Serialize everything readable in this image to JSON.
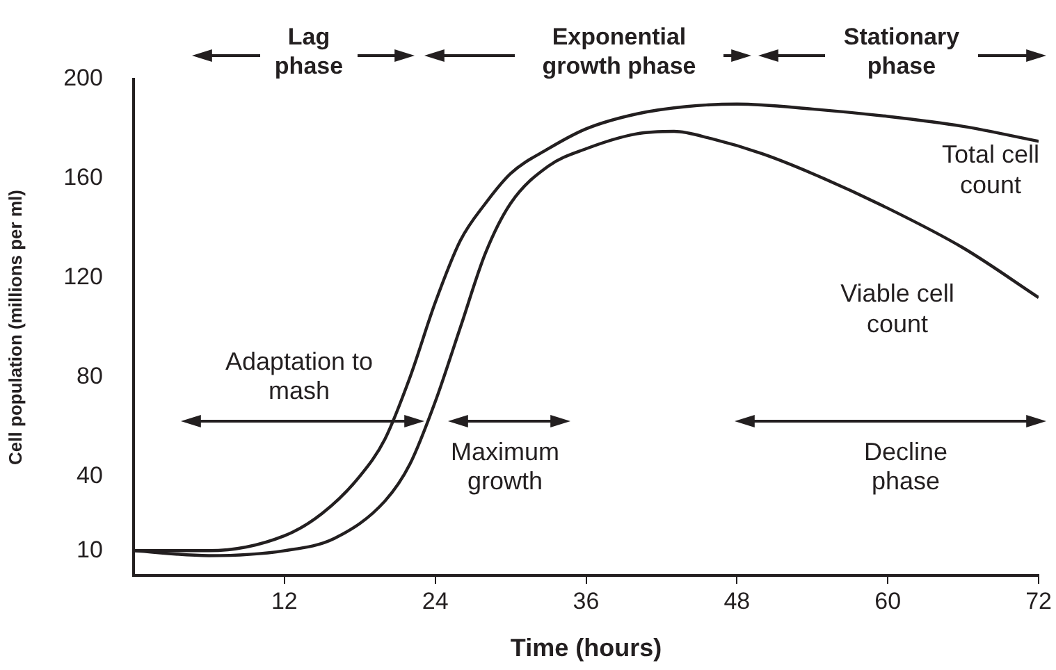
{
  "chart_data": {
    "type": "line",
    "xlabel": "Time (hours)",
    "ylabel": "Cell population (millions per ml)",
    "xlim": [
      0,
      72
    ],
    "xticks": [
      12,
      24,
      36,
      48,
      60,
      72
    ],
    "ylim": [
      0,
      200
    ],
    "yticks": [
      10,
      40,
      80,
      120,
      160,
      200
    ],
    "grid": false,
    "legend": false,
    "marker": "none",
    "line_style": "solid",
    "series": [
      {
        "name": "Total cell count",
        "color": "#231f20",
        "x": [
          0,
          6,
          12,
          15,
          18,
          20,
          22,
          24,
          26,
          28,
          30,
          33,
          36,
          40,
          44,
          48,
          54,
          60,
          66,
          72
        ],
        "values": [
          10,
          10,
          16,
          25,
          40,
          55,
          80,
          110,
          135,
          150,
          162,
          172,
          180,
          186,
          189,
          190,
          188,
          185,
          181,
          175
        ]
      },
      {
        "name": "Viable cell count",
        "color": "#231f20",
        "x": [
          0,
          6,
          12,
          16,
          20,
          22,
          24,
          26,
          28,
          30,
          33,
          36,
          40,
          43,
          46,
          50,
          54,
          60,
          66,
          72
        ],
        "values": [
          10,
          8,
          10,
          15,
          30,
          45,
          70,
          100,
          130,
          150,
          165,
          172,
          178,
          179,
          176,
          170,
          162,
          148,
          132,
          112
        ]
      }
    ],
    "annotations": [
      "Lag phase",
      "Exponential growth phase",
      "Stationary phase",
      "Adaptation to mash",
      "Maximum growth",
      "Decline phase"
    ]
  }
}
